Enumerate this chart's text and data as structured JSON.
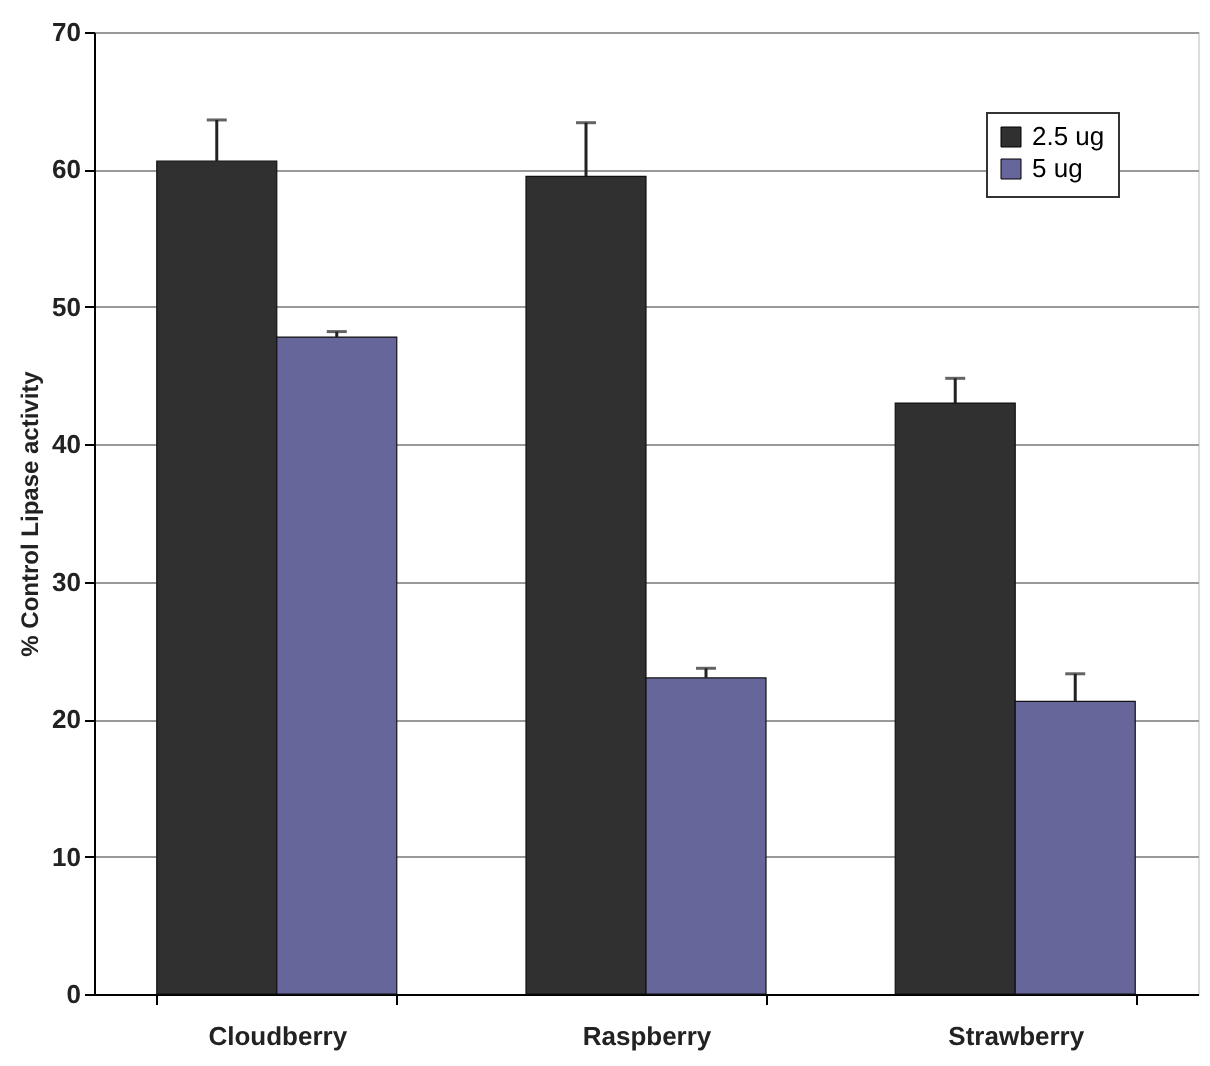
{
  "chart_data": {
    "type": "bar",
    "ylabel": "% Control Lipase activity",
    "categories": [
      "Cloudberry",
      "Raspberry",
      "Strawberry"
    ],
    "series": [
      {
        "name": "2.5 ug",
        "color": "#303030",
        "values": [
          60.6,
          59.5,
          43.0
        ],
        "errors": [
          [
            60.6,
            63.6
          ],
          [
            59.5,
            63.4
          ],
          [
            43.0,
            44.8
          ]
        ]
      },
      {
        "name": "5 ug",
        "color": "#67669b",
        "values": [
          47.8,
          23.0,
          21.3
        ],
        "errors": [
          [
            47.8,
            48.2
          ],
          [
            23.0,
            23.7
          ],
          [
            21.3,
            23.3
          ]
        ]
      }
    ],
    "ylim": [
      0,
      70
    ],
    "yticks": [
      0,
      10,
      20,
      30,
      40,
      50,
      60,
      70
    ],
    "grid": "y",
    "legend": "top right"
  }
}
